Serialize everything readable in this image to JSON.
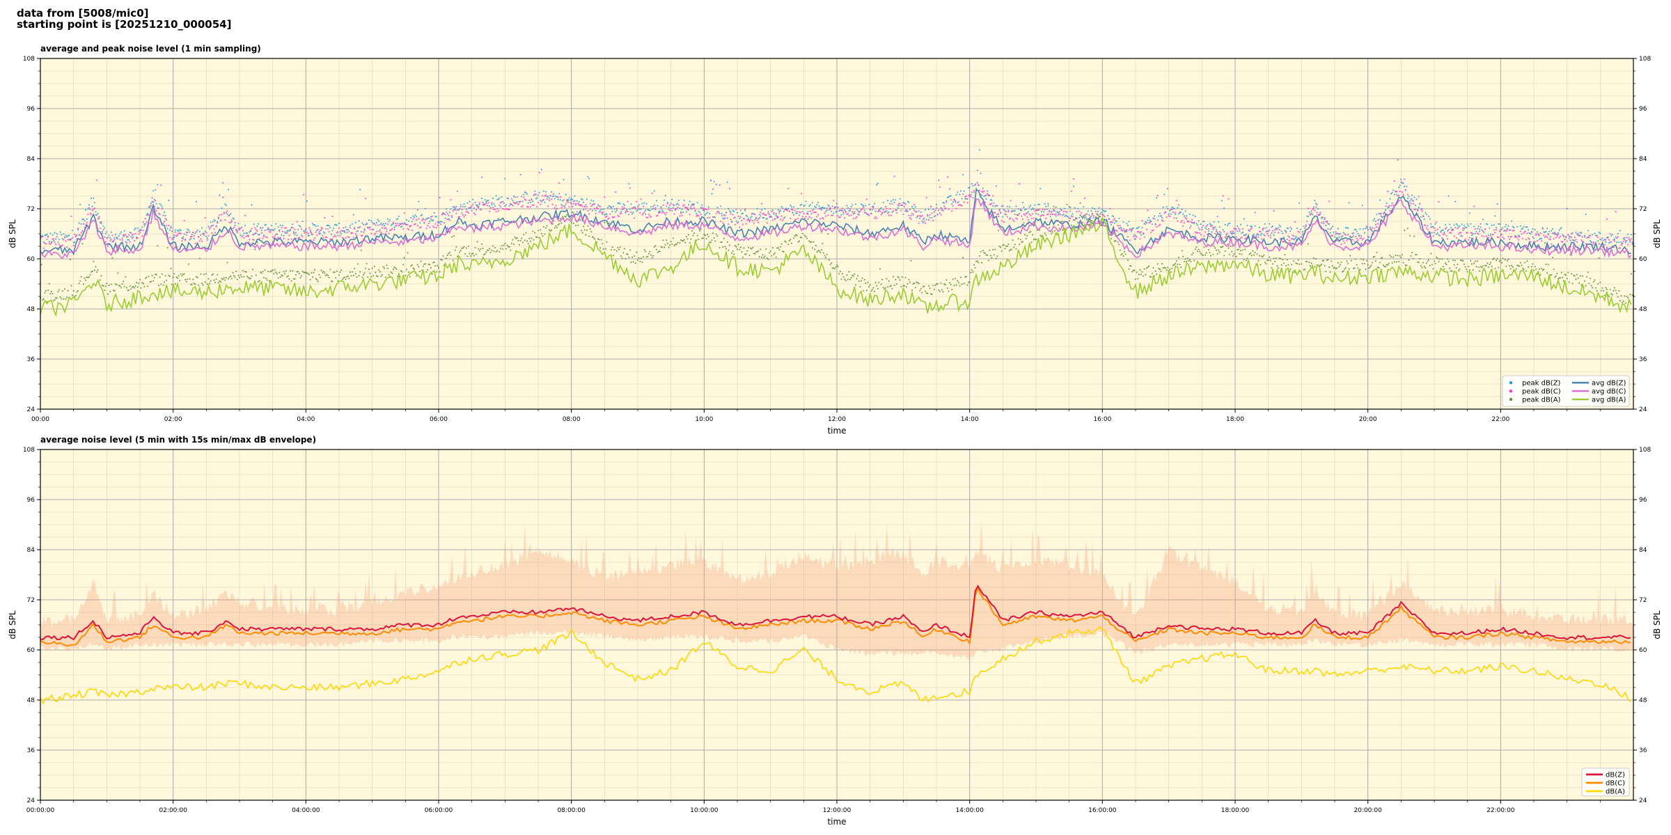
{
  "header": {
    "line1": "data from [5008/mic0]",
    "line2": "starting point is [20251210_000054]"
  },
  "colors": {
    "background": "#fff8dc",
    "peak_z": "#1f9bd7",
    "peak_c": "#ff33cc",
    "peak_a": "#5a8f3a",
    "avg_z": "#4682b4",
    "avg_c": "#da70d6",
    "avg_a": "#9acd32",
    "z": "#dc143c",
    "c": "#ff8c00",
    "a": "#ffd700",
    "envelope": "#f4a582"
  },
  "chart_data": [
    {
      "type": "scatter",
      "title": "average and peak noise level (1 min sampling)",
      "xlabel": "time",
      "ylabel": "dB SPL",
      "xlim_hours": [
        0,
        24
      ],
      "ylim": [
        24,
        108
      ],
      "yticks": [
        24,
        36,
        48,
        60,
        72,
        84,
        96,
        108
      ],
      "xticks": [
        "00:00",
        "02:00",
        "04:00",
        "06:00",
        "08:00",
        "10:00",
        "12:00",
        "14:00",
        "16:00",
        "18:00",
        "20:00",
        "22:00"
      ],
      "grid": true,
      "legend_position": "bottom-right",
      "x_hours": [
        0,
        0.5,
        0.8,
        1,
        1.5,
        1.7,
        2,
        2.5,
        2.8,
        3,
        3.5,
        4,
        4.5,
        5,
        5.5,
        6,
        6.3,
        6.5,
        7,
        7.5,
        8,
        8.5,
        9,
        9.5,
        10,
        10.5,
        11,
        11.5,
        12,
        12.5,
        13,
        13.3,
        13.5,
        14,
        14.1,
        14.5,
        15,
        15.5,
        16,
        16.5,
        17,
        17.5,
        18,
        18.5,
        19,
        19.2,
        19.5,
        20,
        20.5,
        21,
        21.5,
        22,
        22.5,
        23,
        23.5,
        24
      ],
      "series": [
        {
          "name": "peak dB(Z)",
          "kind": "points",
          "values": [
            65,
            65,
            74,
            65,
            66,
            75,
            66,
            66,
            72,
            67,
            67,
            67,
            67,
            68,
            69,
            70,
            72,
            73,
            74,
            75,
            74,
            72,
            72,
            73,
            72,
            70,
            71,
            72,
            72,
            72,
            73,
            70,
            72,
            76,
            78,
            71,
            72,
            71,
            71,
            66,
            72,
            68,
            67,
            67,
            66,
            73,
            66,
            66,
            78,
            67,
            67,
            67,
            66,
            66,
            65,
            65
          ]
        },
        {
          "name": "peak dB(C)",
          "kind": "points",
          "values": [
            64,
            64,
            73,
            64,
            65,
            74,
            65,
            65,
            71,
            66,
            66,
            66,
            66,
            67,
            68,
            69,
            71,
            72,
            73,
            74,
            73,
            71,
            71,
            72,
            71,
            69,
            70,
            71,
            71,
            71,
            72,
            69,
            71,
            75,
            77,
            70,
            71,
            70,
            70,
            65,
            71,
            67,
            66,
            66,
            65,
            72,
            65,
            65,
            77,
            66,
            66,
            66,
            65,
            65,
            64,
            64
          ]
        },
        {
          "name": "peak dB(A)",
          "kind": "points",
          "values": [
            51,
            52,
            58,
            53,
            54,
            55,
            55,
            55,
            56,
            56,
            56,
            56,
            56,
            57,
            57,
            58,
            62,
            62,
            63,
            66,
            70,
            63,
            60,
            64,
            66,
            62,
            61,
            66,
            57,
            53,
            55,
            52,
            53,
            55,
            60,
            62,
            66,
            68,
            70,
            56,
            58,
            62,
            62,
            59,
            58,
            59,
            58,
            59,
            60,
            59,
            58,
            59,
            58,
            56,
            53,
            50
          ]
        },
        {
          "name": "avg dB(Z)",
          "kind": "line",
          "values": [
            62,
            62,
            70,
            63,
            63,
            72,
            63,
            63,
            68,
            64,
            64,
            64,
            64,
            65,
            65,
            66,
            69,
            68,
            69,
            70,
            71,
            69,
            67,
            69,
            69,
            66,
            67,
            69,
            68,
            66,
            68,
            64,
            66,
            64,
            76,
            67,
            69,
            68,
            69,
            62,
            67,
            65,
            65,
            64,
            64,
            70,
            64,
            64,
            75,
            64,
            64,
            64,
            63,
            63,
            63,
            62
          ]
        },
        {
          "name": "avg dB(C)",
          "kind": "line",
          "values": [
            61,
            61,
            69,
            62,
            62,
            71,
            62,
            62,
            67,
            63,
            63,
            63,
            63,
            64,
            64,
            65,
            68,
            67,
            68,
            69,
            70,
            68,
            66,
            68,
            68,
            65,
            66,
            68,
            67,
            65,
            67,
            63,
            65,
            63,
            75,
            66,
            68,
            67,
            68,
            61,
            66,
            64,
            64,
            63,
            63,
            69,
            63,
            63,
            74,
            63,
            63,
            63,
            62,
            62,
            62,
            61
          ]
        },
        {
          "name": "avg dB(A)",
          "kind": "line",
          "values": [
            48,
            49,
            55,
            49,
            51,
            52,
            52,
            52,
            53,
            53,
            53,
            52,
            53,
            54,
            55,
            56,
            59,
            58,
            60,
            63,
            67,
            61,
            55,
            58,
            64,
            58,
            57,
            62,
            53,
            50,
            52,
            48,
            49,
            50,
            55,
            58,
            63,
            66,
            68,
            52,
            56,
            58,
            59,
            56,
            56,
            57,
            55,
            56,
            57,
            56,
            55,
            56,
            56,
            53,
            51,
            48
          ]
        }
      ]
    },
    {
      "type": "line",
      "title": "average noise level (5 min with 15s min/max dB envelope)",
      "xlabel": "time",
      "ylabel": "dB SPL",
      "xlim_hours": [
        0,
        24
      ],
      "ylim": [
        24,
        108
      ],
      "yticks": [
        24,
        36,
        48,
        60,
        72,
        84,
        96,
        108
      ],
      "xticks": [
        "00:00:00",
        "02:00:00",
        "04:00:00",
        "06:00:00",
        "08:00:00",
        "10:00:00",
        "12:00:00",
        "14:00:00",
        "16:00:00",
        "18:00:00",
        "20:00:00",
        "22:00:00"
      ],
      "grid": true,
      "legend_position": "bottom-right",
      "x_hours": [
        0,
        0.5,
        0.8,
        1,
        1.5,
        1.7,
        2,
        2.5,
        2.8,
        3,
        3.5,
        4,
        4.5,
        5,
        5.5,
        6,
        6.3,
        6.5,
        7,
        7.5,
        8,
        8.5,
        9,
        9.5,
        10,
        10.5,
        11,
        11.5,
        12,
        12.5,
        13,
        13.3,
        13.5,
        14,
        14.1,
        14.5,
        15,
        15.5,
        16,
        16.5,
        17,
        17.5,
        18,
        18.5,
        19,
        19.2,
        19.5,
        20,
        20.5,
        21,
        21.5,
        22,
        22.5,
        23,
        23.5,
        24
      ],
      "envelope_max": [
        65,
        66,
        75,
        66,
        67,
        72,
        67,
        68,
        72,
        70,
        69,
        68,
        68,
        70,
        72,
        74,
        76,
        77,
        79,
        82,
        80,
        76,
        77,
        79,
        80,
        75,
        77,
        81,
        78,
        80,
        82,
        76,
        80,
        78,
        82,
        78,
        80,
        79,
        76,
        66,
        82,
        78,
        75,
        68,
        68,
        73,
        67,
        67,
        74,
        68,
        68,
        68,
        67,
        66,
        66,
        65
      ],
      "envelope_min": [
        61,
        61,
        62,
        61,
        62,
        62,
        62,
        62,
        62,
        62,
        62,
        62,
        62,
        63,
        63,
        63,
        64,
        64,
        64,
        65,
        65,
        64,
        63,
        64,
        64,
        63,
        63,
        64,
        61,
        60,
        60,
        60,
        60,
        59,
        60,
        61,
        63,
        64,
        65,
        60,
        62,
        62,
        62,
        62,
        62,
        63,
        62,
        62,
        63,
        62,
        62,
        62,
        62,
        61,
        61,
        61
      ],
      "series": [
        {
          "name": "dB(Z)",
          "values": [
            63,
            63,
            67,
            63,
            64,
            68,
            64,
            64,
            67,
            65,
            65,
            65,
            65,
            65,
            66,
            66,
            68,
            68,
            69,
            69,
            70,
            68,
            67,
            68,
            69,
            66,
            67,
            68,
            68,
            66,
            68,
            64,
            66,
            63,
            76,
            67,
            69,
            68,
            69,
            63,
            66,
            65,
            65,
            64,
            64,
            67,
            64,
            64,
            71,
            64,
            64,
            65,
            64,
            63,
            63,
            63
          ]
        },
        {
          "name": "dB(C)",
          "values": [
            62,
            61,
            66,
            62,
            63,
            66,
            63,
            63,
            66,
            64,
            64,
            64,
            64,
            64,
            65,
            65,
            67,
            67,
            68,
            68,
            69,
            67,
            66,
            67,
            68,
            65,
            66,
            67,
            67,
            65,
            67,
            63,
            65,
            62,
            75,
            66,
            68,
            67,
            68,
            62,
            65,
            64,
            64,
            63,
            63,
            66,
            63,
            63,
            70,
            63,
            63,
            64,
            63,
            62,
            62,
            62
          ]
        },
        {
          "name": "dB(A)",
          "values": [
            48,
            49,
            50,
            49,
            50,
            51,
            51,
            51,
            52,
            52,
            51,
            51,
            51,
            52,
            53,
            55,
            57,
            58,
            59,
            60,
            64,
            57,
            53,
            55,
            62,
            56,
            55,
            60,
            53,
            50,
            52,
            48,
            49,
            50,
            54,
            58,
            62,
            64,
            65,
            52,
            56,
            58,
            59,
            55,
            55,
            55,
            54,
            55,
            56,
            55,
            55,
            56,
            55,
            53,
            52,
            48
          ]
        }
      ]
    }
  ]
}
